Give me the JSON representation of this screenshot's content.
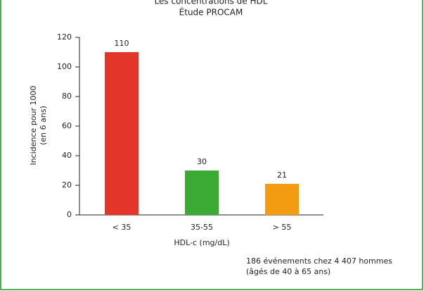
{
  "chart_data": {
    "type": "bar",
    "title": "Les concentrations de HDL",
    "subtitle": "Étude PROCAM",
    "y_label": [
      "Incidence pour 1000",
      "(en 6 ans)"
    ],
    "x_label": "HDL-c (mg/dL)",
    "categories": [
      "< 35",
      "35-55",
      "> 55"
    ],
    "values": [
      110,
      30,
      21
    ],
    "colors": [
      "#e2362b",
      "#3aaa35",
      "#f39c12"
    ],
    "ylim": [
      0,
      120
    ],
    "yticks": [
      0,
      20,
      40,
      60,
      80,
      100,
      120
    ],
    "annotation": [
      "186 événements chez 4 407 hommes",
      "(âgés de 40 à 65 ans)"
    ]
  }
}
